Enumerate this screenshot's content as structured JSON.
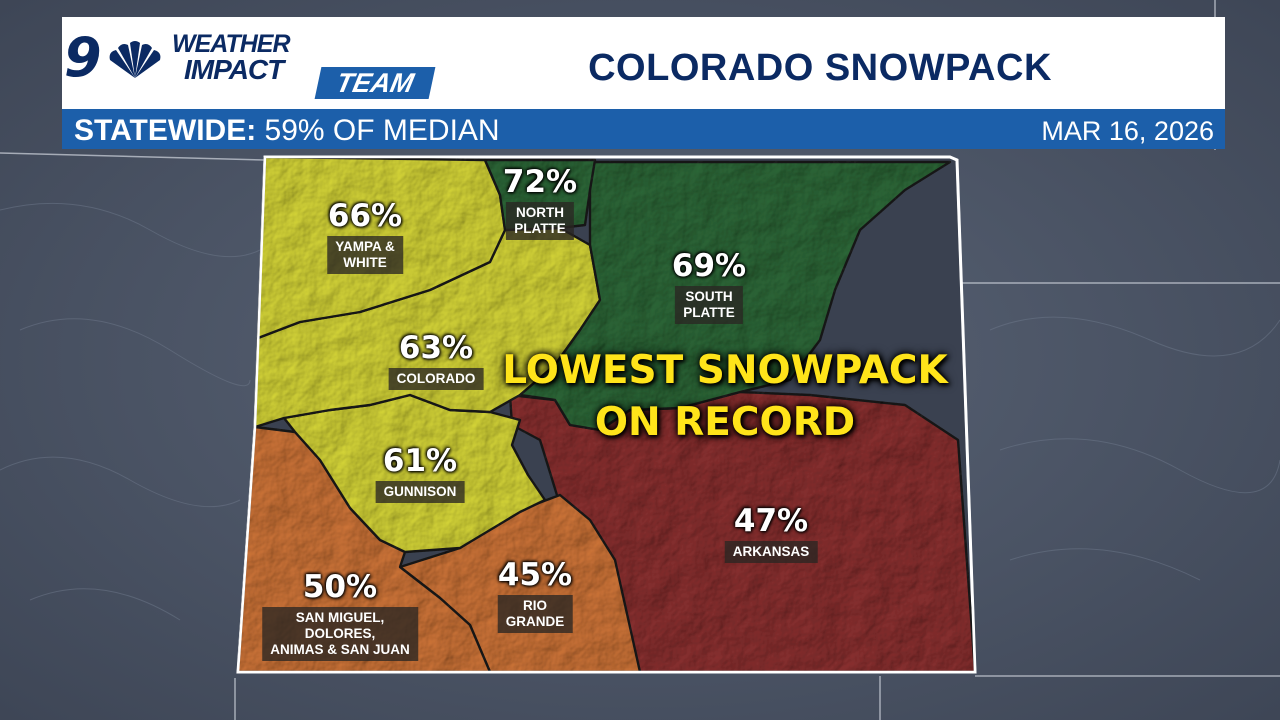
{
  "header": {
    "logo": {
      "nine": "9",
      "line1": "WEATHER",
      "line2": "IMPACT",
      "team": "TEAM"
    },
    "title": "COLORADO SNOWPACK"
  },
  "subheader": {
    "statewide_label": "STATEWIDE:",
    "statewide_value": "59% OF MEDIAN",
    "date": "MAR 16, 2026"
  },
  "headline": {
    "line1": "LOWEST SNOWPACK",
    "line2": "ON RECORD"
  },
  "colors": {
    "yellow": "#dcdc3a",
    "green": "#2f6b3a",
    "orange": "#d4783a",
    "red": "#8e3232",
    "header_blue": "#1c5faa",
    "title_navy": "#0b2a63",
    "headline_yellow": "#ffe41a"
  },
  "regions": [
    {
      "id": "yampa-white",
      "pct": "66%",
      "name": "YAMPA &\nWHITE",
      "color": "#dcdc3a"
    },
    {
      "id": "north-platte",
      "pct": "72%",
      "name": "NORTH\nPLATTE",
      "color": "#2f6b3a"
    },
    {
      "id": "south-platte",
      "pct": "69%",
      "name": "SOUTH\nPLATTE",
      "color": "#2f6b3a"
    },
    {
      "id": "colorado",
      "pct": "63%",
      "name": "COLORADO",
      "color": "#dcdc3a"
    },
    {
      "id": "gunnison",
      "pct": "61%",
      "name": "GUNNISON",
      "color": "#dcdc3a"
    },
    {
      "id": "arkansas",
      "pct": "47%",
      "name": "ARKANSAS",
      "color": "#8e3232"
    },
    {
      "id": "san-miguel",
      "pct": "50%",
      "name": "SAN MIGUEL,\nDOLORES,\nANIMAS & SAN JUAN",
      "color": "#d4783a"
    },
    {
      "id": "rio-grande",
      "pct": "45%",
      "name": "RIO\nGRANDE",
      "color": "#d4783a"
    }
  ]
}
